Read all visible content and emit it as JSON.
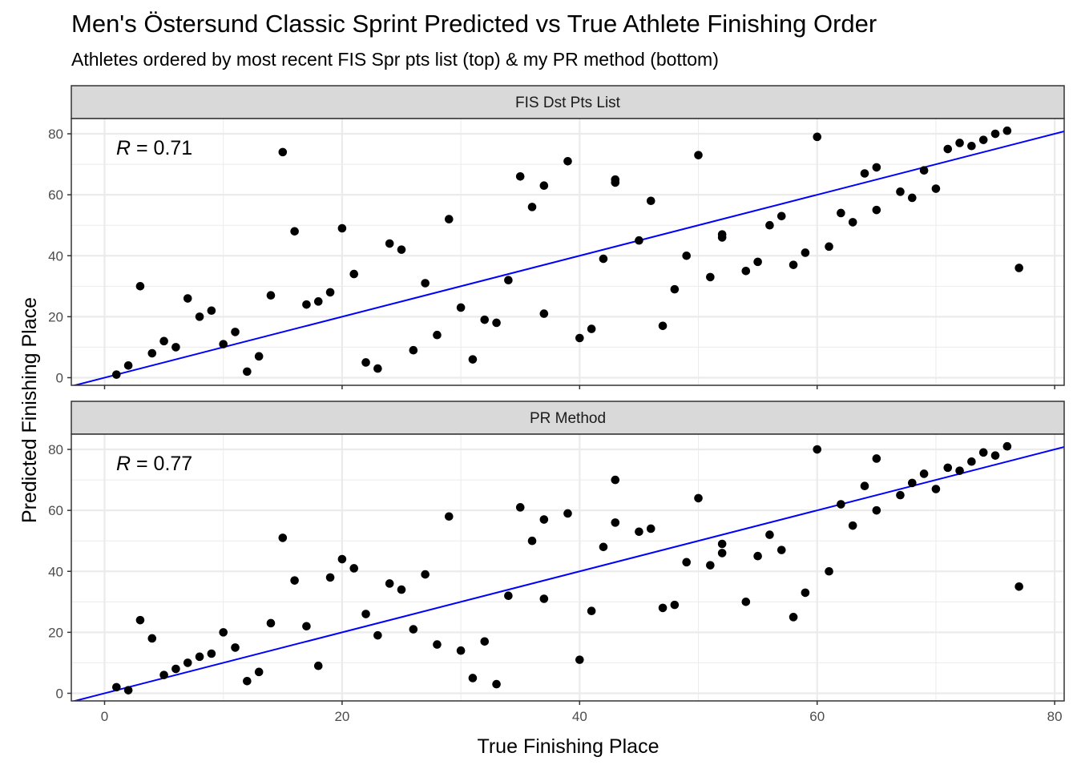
{
  "title": "Men's Östersund Classic Sprint Predicted vs True Athlete Finishing Order",
  "subtitle": "Athletes ordered by most recent FIS Spr pts list (top) & my PR method (bottom)",
  "xlabel": "True Finishing Place",
  "ylabel": "Predicted Finishing Place",
  "colors": {
    "points": "#000000",
    "line": "#0000ff",
    "strip": "#d9d9d9",
    "grid": "#ebebeb"
  },
  "chart_data": [
    {
      "type": "scatter",
      "panel": "FIS Dst Pts List",
      "r_label_var": "R",
      "r_label_value": "= 0.71",
      "xlim": [
        -2.8,
        80.8
      ],
      "ylim": [
        -2.5,
        85
      ],
      "x_ticks": [
        0,
        20,
        40,
        60,
        80
      ],
      "y_ticks": [
        0,
        20,
        40,
        60,
        80
      ],
      "reference_line": {
        "slope": 1,
        "intercept": 0
      },
      "points": [
        [
          1,
          1
        ],
        [
          2,
          4
        ],
        [
          3,
          30
        ],
        [
          4,
          8
        ],
        [
          5,
          12
        ],
        [
          6,
          10
        ],
        [
          7,
          26
        ],
        [
          8,
          20
        ],
        [
          9,
          22
        ],
        [
          10,
          11
        ],
        [
          11,
          15
        ],
        [
          12,
          2
        ],
        [
          13,
          7
        ],
        [
          14,
          27
        ],
        [
          15,
          74
        ],
        [
          16,
          48
        ],
        [
          17,
          24
        ],
        [
          18,
          25
        ],
        [
          19,
          28
        ],
        [
          20,
          49
        ],
        [
          21,
          34
        ],
        [
          22,
          5
        ],
        [
          23,
          3
        ],
        [
          24,
          44
        ],
        [
          25,
          42
        ],
        [
          26,
          9
        ],
        [
          27,
          31
        ],
        [
          28,
          14
        ],
        [
          29,
          52
        ],
        [
          30,
          23
        ],
        [
          31,
          6
        ],
        [
          32,
          19
        ],
        [
          33,
          18
        ],
        [
          34,
          32
        ],
        [
          35,
          66
        ],
        [
          36,
          56
        ],
        [
          37,
          63
        ],
        [
          37,
          21
        ],
        [
          39,
          71
        ],
        [
          40,
          13
        ],
        [
          41,
          16
        ],
        [
          42,
          39
        ],
        [
          43,
          65
        ],
        [
          43,
          64
        ],
        [
          45,
          45
        ],
        [
          46,
          58
        ],
        [
          47,
          17
        ],
        [
          48,
          29
        ],
        [
          49,
          40
        ],
        [
          50,
          73
        ],
        [
          51,
          33
        ],
        [
          52,
          47
        ],
        [
          52,
          46
        ],
        [
          54,
          35
        ],
        [
          55,
          38
        ],
        [
          56,
          50
        ],
        [
          57,
          53
        ],
        [
          58,
          37
        ],
        [
          59,
          41
        ],
        [
          60,
          79
        ],
        [
          61,
          43
        ],
        [
          62,
          54
        ],
        [
          63,
          51
        ],
        [
          64,
          67
        ],
        [
          65,
          69
        ],
        [
          65,
          55
        ],
        [
          67,
          61
        ],
        [
          68,
          59
        ],
        [
          69,
          68
        ],
        [
          70,
          62
        ],
        [
          71,
          75
        ],
        [
          72,
          77
        ],
        [
          73,
          76
        ],
        [
          74,
          78
        ],
        [
          75,
          80
        ],
        [
          76,
          81
        ],
        [
          77,
          36
        ]
      ]
    },
    {
      "type": "scatter",
      "panel": "PR Method",
      "r_label_var": "R",
      "r_label_value": "= 0.77",
      "xlim": [
        -2.8,
        80.8
      ],
      "ylim": [
        -2.5,
        85
      ],
      "x_ticks": [
        0,
        20,
        40,
        60,
        80
      ],
      "y_ticks": [
        0,
        20,
        40,
        60,
        80
      ],
      "reference_line": {
        "slope": 1,
        "intercept": 0
      },
      "points": [
        [
          1,
          2
        ],
        [
          2,
          1
        ],
        [
          3,
          24
        ],
        [
          4,
          18
        ],
        [
          5,
          6
        ],
        [
          6,
          8
        ],
        [
          7,
          10
        ],
        [
          8,
          12
        ],
        [
          9,
          13
        ],
        [
          10,
          20
        ],
        [
          11,
          15
        ],
        [
          12,
          4
        ],
        [
          13,
          7
        ],
        [
          14,
          23
        ],
        [
          15,
          51
        ],
        [
          16,
          37
        ],
        [
          17,
          22
        ],
        [
          18,
          9
        ],
        [
          19,
          38
        ],
        [
          20,
          44
        ],
        [
          21,
          41
        ],
        [
          22,
          26
        ],
        [
          23,
          19
        ],
        [
          24,
          36
        ],
        [
          25,
          34
        ],
        [
          26,
          21
        ],
        [
          27,
          39
        ],
        [
          28,
          16
        ],
        [
          29,
          58
        ],
        [
          30,
          14
        ],
        [
          31,
          5
        ],
        [
          32,
          17
        ],
        [
          33,
          3
        ],
        [
          34,
          32
        ],
        [
          35,
          61
        ],
        [
          36,
          50
        ],
        [
          37,
          57
        ],
        [
          37,
          31
        ],
        [
          39,
          59
        ],
        [
          40,
          11
        ],
        [
          41,
          27
        ],
        [
          42,
          48
        ],
        [
          43,
          70
        ],
        [
          43,
          56
        ],
        [
          45,
          53
        ],
        [
          46,
          54
        ],
        [
          47,
          28
        ],
        [
          48,
          29
        ],
        [
          49,
          43
        ],
        [
          50,
          64
        ],
        [
          51,
          42
        ],
        [
          52,
          49
        ],
        [
          52,
          46
        ],
        [
          54,
          30
        ],
        [
          55,
          45
        ],
        [
          56,
          52
        ],
        [
          57,
          47
        ],
        [
          58,
          25
        ],
        [
          59,
          33
        ],
        [
          60,
          80
        ],
        [
          61,
          40
        ],
        [
          62,
          62
        ],
        [
          63,
          55
        ],
        [
          64,
          68
        ],
        [
          65,
          77
        ],
        [
          65,
          60
        ],
        [
          67,
          65
        ],
        [
          68,
          69
        ],
        [
          69,
          72
        ],
        [
          70,
          67
        ],
        [
          71,
          74
        ],
        [
          72,
          73
        ],
        [
          73,
          76
        ],
        [
          74,
          79
        ],
        [
          75,
          78
        ],
        [
          76,
          81
        ],
        [
          77,
          35
        ]
      ]
    }
  ]
}
